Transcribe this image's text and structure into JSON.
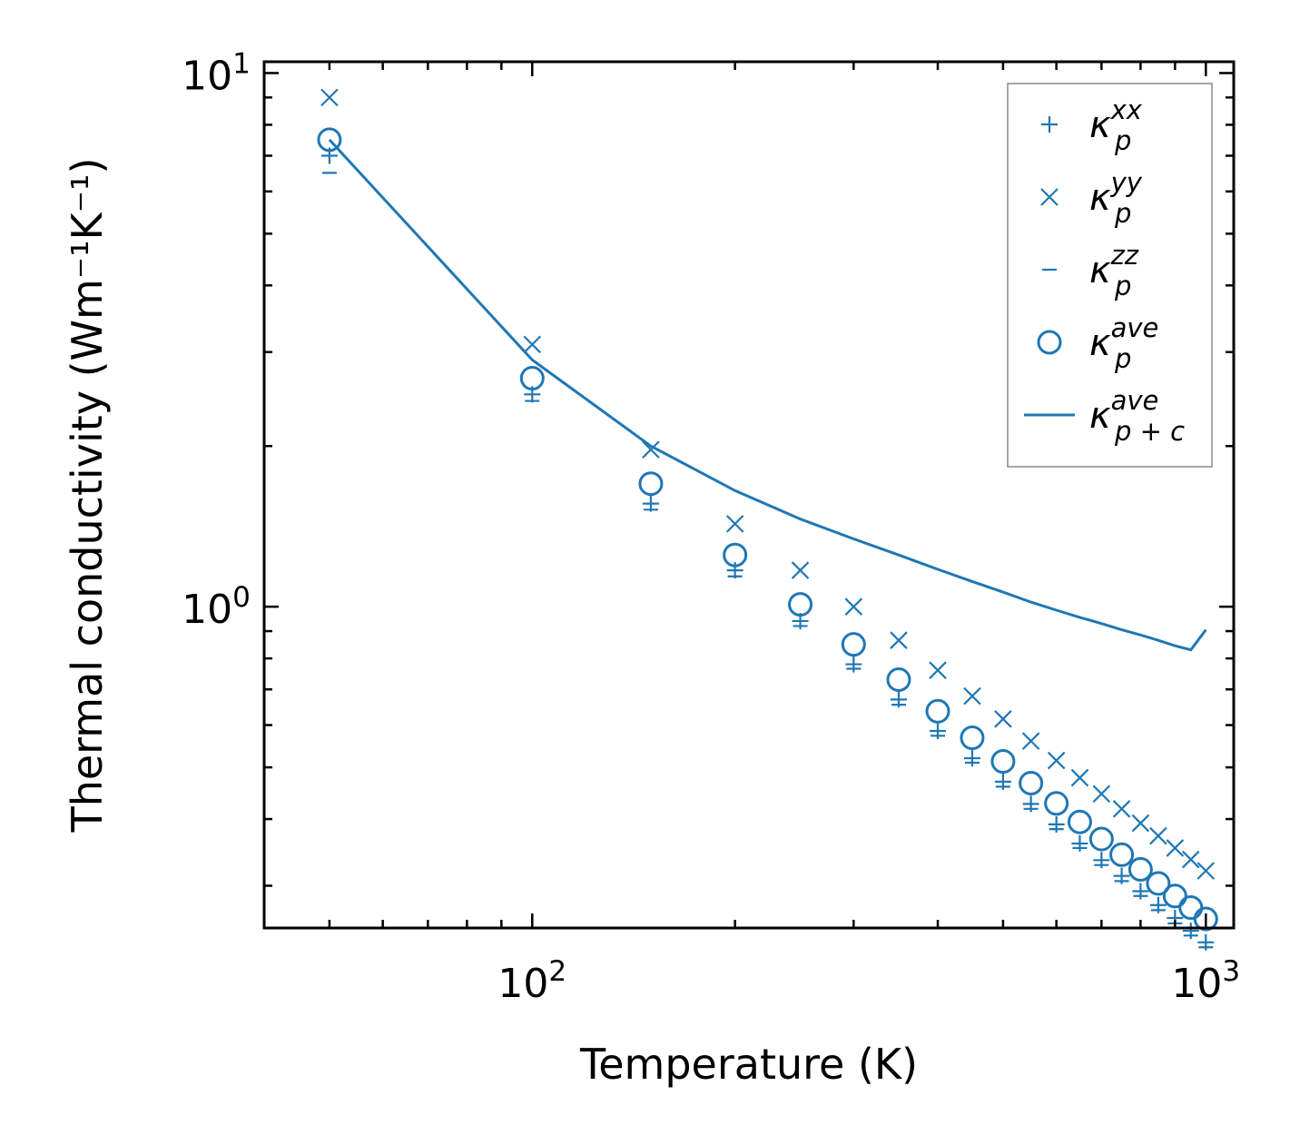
{
  "chart_data": {
    "type": "scatter",
    "xscale": "log",
    "yscale": "log",
    "xlim": [
      40,
      1100
    ],
    "ylim": [
      0.25,
      10.5
    ],
    "xlabel": "Temperature (K)",
    "ylabel": "Thermal conductivity (Wm⁻¹K⁻¹)",
    "xticks": [
      {
        "base": "10",
        "exp": "2",
        "value": 100
      },
      {
        "base": "10",
        "exp": "3",
        "value": 1000
      }
    ],
    "yticks": [
      {
        "base": "10",
        "exp": "0",
        "value": 1
      },
      {
        "base": "10",
        "exp": "1",
        "value": 10
      }
    ],
    "temperatures": [
      50,
      100,
      150,
      200,
      250,
      300,
      350,
      400,
      450,
      500,
      550,
      600,
      650,
      700,
      750,
      800,
      850,
      900,
      950,
      1000
    ],
    "series": [
      {
        "name": "kappa_p_xx",
        "marker": "plus",
        "label_base": "κ",
        "label_sub": "p",
        "label_sup": "xx",
        "values": [
          7.0,
          2.5,
          1.56,
          1.17,
          0.94,
          0.78,
          0.67,
          0.585,
          0.52,
          0.47,
          0.427,
          0.391,
          0.36,
          0.335,
          0.313,
          0.293,
          0.276,
          0.261,
          0.247,
          0.235
        ]
      },
      {
        "name": "kappa_p_yy",
        "marker": "x",
        "label_base": "κ",
        "label_sub": "p",
        "label_sup": "yy",
        "values": [
          9.0,
          3.1,
          1.97,
          1.43,
          1.17,
          1.0,
          0.865,
          0.76,
          0.68,
          0.616,
          0.56,
          0.515,
          0.478,
          0.446,
          0.418,
          0.393,
          0.372,
          0.353,
          0.336,
          0.32
        ]
      },
      {
        "name": "kappa_p_zz",
        "marker": "hline",
        "label_base": "κ",
        "label_sub": "p",
        "label_sup": "zz",
        "values": [
          6.5,
          2.43,
          1.52,
          1.14,
          0.92,
          0.765,
          0.655,
          0.573,
          0.51,
          0.46,
          0.418,
          0.383,
          0.353,
          0.328,
          0.306,
          0.287,
          0.27,
          0.255,
          0.242,
          0.23
        ]
      },
      {
        "name": "kappa_p_ave",
        "marker": "circle",
        "label_base": "κ",
        "label_sub": "p",
        "label_sup": "ave",
        "values": [
          7.5,
          2.68,
          1.7,
          1.25,
          1.01,
          0.85,
          0.73,
          0.637,
          0.568,
          0.513,
          0.467,
          0.428,
          0.395,
          0.367,
          0.343,
          0.322,
          0.303,
          0.287,
          0.273,
          0.26
        ]
      },
      {
        "name": "kappa_p_plus_c_ave",
        "marker": "line",
        "label_base": "κ",
        "label_sub": "p + c",
        "label_sup": "ave",
        "values": [
          7.5,
          2.9,
          2.0,
          1.65,
          1.46,
          1.34,
          1.25,
          1.175,
          1.115,
          1.065,
          1.02,
          0.985,
          0.955,
          0.93,
          0.905,
          0.885,
          0.865,
          0.845,
          0.83,
          0.905
        ]
      }
    ],
    "legend": "top-right",
    "color": "#1f77b4",
    "grid": false
  }
}
